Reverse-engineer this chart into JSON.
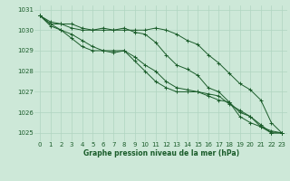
{
  "background_color": "#cde8d8",
  "grid_color": "#b0d4c0",
  "line_color": "#1a5c2a",
  "x_label": "Graphe pression niveau de la mer (hPa)",
  "hours": [
    0,
    1,
    2,
    3,
    4,
    5,
    6,
    7,
    8,
    9,
    10,
    11,
    12,
    13,
    14,
    15,
    16,
    17,
    18,
    19,
    20,
    21,
    22,
    23
  ],
  "series": [
    [
      1030.7,
      1030.4,
      1030.3,
      1030.3,
      1030.1,
      1030.0,
      1030.0,
      1030.0,
      1030.0,
      1030.0,
      1030.0,
      1030.1,
      1030.0,
      1029.8,
      1029.5,
      1029.3,
      1028.8,
      1028.4,
      1027.9,
      1027.4,
      1027.1,
      1026.6,
      1025.5,
      1025.0
    ],
    [
      1030.7,
      1030.3,
      1030.3,
      1030.1,
      1030.0,
      1030.0,
      1030.1,
      1030.0,
      1030.1,
      1029.9,
      1029.8,
      1029.4,
      1028.8,
      1028.3,
      1028.1,
      1027.8,
      1027.2,
      1027.0,
      1026.5,
      1025.8,
      1025.5,
      1025.3,
      1025.1,
      1025.0
    ],
    [
      1030.7,
      1030.2,
      1030.0,
      1029.8,
      1029.5,
      1029.2,
      1029.0,
      1028.9,
      1029.0,
      1028.7,
      1028.3,
      1028.0,
      1027.5,
      1027.2,
      1027.1,
      1027.0,
      1026.9,
      1026.8,
      1026.4,
      1026.1,
      1025.8,
      1025.3,
      1025.0,
      1025.0
    ],
    [
      1030.7,
      1030.3,
      1030.0,
      1029.6,
      1029.2,
      1029.0,
      1029.0,
      1029.0,
      1029.0,
      1028.5,
      1028.0,
      1027.5,
      1027.2,
      1027.0,
      1027.0,
      1027.0,
      1026.8,
      1026.6,
      1026.5,
      1026.0,
      1025.8,
      1025.4,
      1025.0,
      1025.0
    ]
  ],
  "ylim": [
    1024.6,
    1031.2
  ],
  "yticks": [
    1025,
    1026,
    1027,
    1028,
    1029,
    1030,
    1031
  ],
  "xlim": [
    -0.5,
    23.5
  ],
  "xticks": [
    0,
    1,
    2,
    3,
    4,
    5,
    6,
    7,
    8,
    9,
    10,
    11,
    12,
    13,
    14,
    15,
    16,
    17,
    18,
    19,
    20,
    21,
    22,
    23
  ],
  "tick_fontsize": 5.0,
  "xlabel_fontsize": 5.5
}
